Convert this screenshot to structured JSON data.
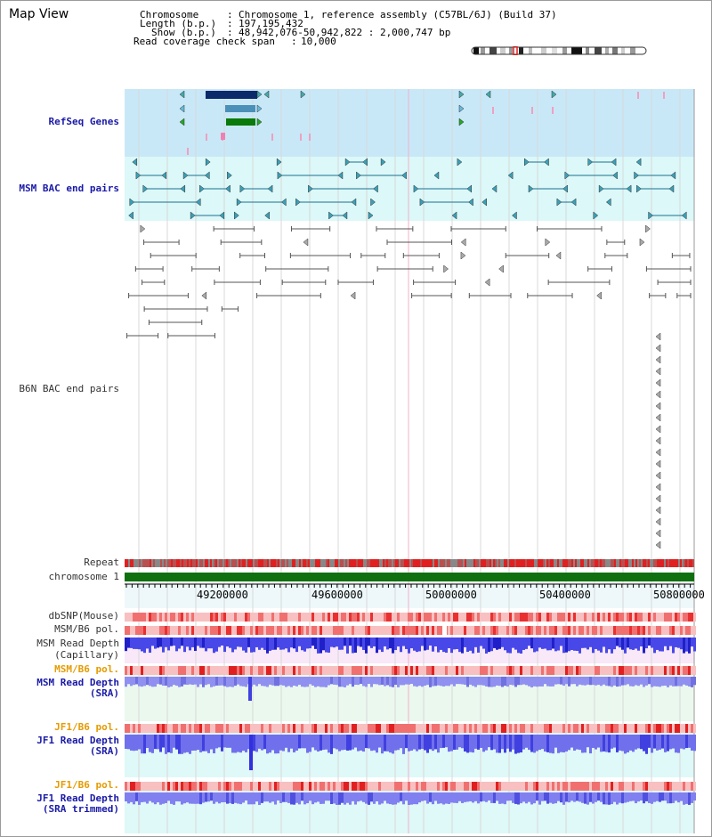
{
  "title": "Map View",
  "info": {
    "chromosome_key": "Chromosome",
    "chromosome_val": "Chromosome 1, reference assembly (C57BL/6J) (Build 37)",
    "length_key": "Length (b.p.)",
    "length_val": "197,195,432",
    "show_key": "Show (b.p.)",
    "show_val": "48,942,076-50,942,822 : 2,000,747 bp",
    "span_key": "Read coverage check span",
    "span_val": "10,000"
  },
  "tracks": {
    "refseq": "RefSeq Genes",
    "msm_bac": "MSM BAC end pairs",
    "b6n_bac": "B6N BAC end pairs",
    "repeat": "Repeat",
    "chromosome": "chromosome 1",
    "dbsnp": "dbSNP(Mouse)",
    "msm_b6_pol_1": "MSM/B6 pol.",
    "msm_depth_cap_1": "MSM Read Depth",
    "msm_depth_cap_2": "(Capillary)",
    "msm_b6_pol_2": "MSM/B6 pol.",
    "msm_depth_sra_1": "MSM Read Depth",
    "msm_depth_sra_2": "(SRA)",
    "jf1_b6_pol_1": "JF1/B6 pol.",
    "jf1_depth_sra_1": "JF1 Read Depth",
    "jf1_depth_sra_2": "(SRA)",
    "jf1_b6_pol_2": "JF1/B6 pol.",
    "jf1_depth_trim_1": "JF1 Read Depth",
    "jf1_depth_trim_2": "(SRA trimmed)"
  },
  "axis": {
    "ticks": [
      "49200000",
      "49600000",
      "50000000",
      "50400000",
      "50800000"
    ]
  },
  "colors": {
    "refseq_bg": "#c8e8f8",
    "bac_bg": "#dcf8f8",
    "repeat": "#cc2222",
    "chromosome_bar": "#107010",
    "snp": "#f0a0a0",
    "depth_blue": "#3838e8",
    "depth_light": "#9090f0"
  }
}
